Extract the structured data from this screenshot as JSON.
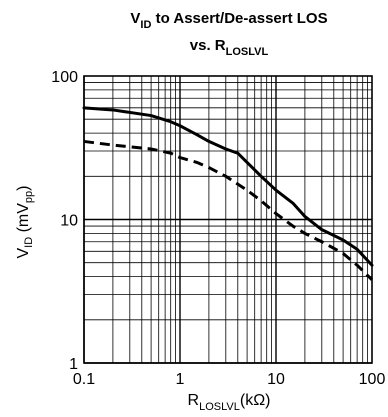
{
  "chart_data": {
    "type": "line",
    "title_line1": {
      "main": "V",
      "sub": "ID",
      "rest": " to Assert/De-assert LOS"
    },
    "title_line2": {
      "main": "vs. R",
      "sub": "LOSLVL"
    },
    "xlabel": {
      "main": "R",
      "sub": "LOSLVL",
      "rest": "(kΩ)"
    },
    "ylabel": {
      "main": "V",
      "sub": "ID",
      "mid": " (mV",
      "sub2": "pp",
      "rest": ")"
    },
    "x_scale": "log",
    "y_scale": "log",
    "xlim": [
      0.1,
      100
    ],
    "ylim": [
      1,
      100
    ],
    "x_ticks": [
      {
        "value": 0.1,
        "label": "0.1"
      },
      {
        "value": 1,
        "label": "1"
      },
      {
        "value": 10,
        "label": "10"
      },
      {
        "value": 100,
        "label": "100"
      }
    ],
    "y_ticks": [
      {
        "value": 1,
        "label": "1"
      },
      {
        "value": 10,
        "label": "10"
      },
      {
        "value": 100,
        "label": "100"
      }
    ],
    "grid": true,
    "series": [
      {
        "style": "solid",
        "color": "#000000",
        "x": [
          0.1,
          0.2,
          0.5,
          0.8,
          1.0,
          1.5,
          2.0,
          3.0,
          4.0,
          5.0,
          7.0,
          10,
          15,
          20,
          30,
          50,
          70,
          100
        ],
        "y": [
          60,
          58,
          53,
          48,
          45,
          39,
          35,
          31,
          29,
          25,
          20,
          16,
          13,
          10.5,
          8.5,
          7.2,
          6.2,
          4.8
        ]
      },
      {
        "style": "dashed",
        "color": "#000000",
        "x": [
          0.1,
          0.2,
          0.5,
          0.8,
          1.0,
          1.5,
          2.0,
          3.0,
          5.0,
          7.0,
          10,
          15,
          20,
          30,
          50,
          70,
          100
        ],
        "y": [
          35,
          33,
          31,
          29,
          27,
          25,
          23,
          20,
          16,
          13.5,
          11,
          9,
          8,
          7,
          5.8,
          4.8,
          3.8
        ]
      }
    ]
  }
}
